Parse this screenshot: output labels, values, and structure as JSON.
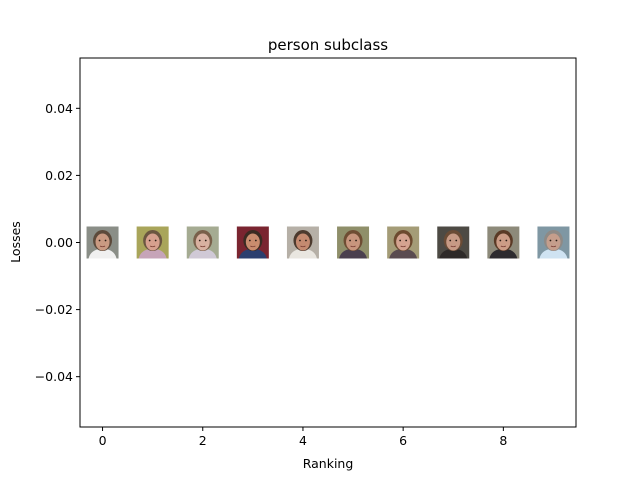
{
  "chart_data": {
    "type": "scatter",
    "title": "person subclass",
    "xlabel": "Ranking",
    "ylabel": "Losses",
    "xlim": [
      -0.45,
      9.45
    ],
    "ylim": [
      -0.055,
      0.055
    ],
    "xticks": [
      0,
      2,
      4,
      6,
      8
    ],
    "xtick_labels": [
      "0",
      "2",
      "4",
      "6",
      "8"
    ],
    "yticks": [
      -0.04,
      -0.02,
      0.0,
      0.02,
      0.04
    ],
    "ytick_labels": [
      "−0.04",
      "−0.02",
      "0.00",
      "0.02",
      "0.04"
    ],
    "grid": false,
    "markers": "face thumbnail images",
    "points": [
      {
        "x": 0,
        "y": 0.0,
        "palette": {
          "bg": "#8a8e87",
          "skin": "#c99a82",
          "hair": "#5c4a3b",
          "shirt": "#f0f0f0"
        }
      },
      {
        "x": 1,
        "y": 0.0,
        "palette": {
          "bg": "#a9a55a",
          "skin": "#d6a08e",
          "hair": "#6b5640",
          "shirt": "#c6a4b8"
        }
      },
      {
        "x": 2,
        "y": 0.0,
        "palette": {
          "bg": "#a5ab92",
          "skin": "#d8b1a0",
          "hair": "#79604a",
          "shirt": "#d0c9d6"
        }
      },
      {
        "x": 3,
        "y": 0.0,
        "palette": {
          "bg": "#7a2530",
          "skin": "#c98c6e",
          "hair": "#3b2b22",
          "shirt": "#2b3f6f"
        }
      },
      {
        "x": 4,
        "y": 0.0,
        "palette": {
          "bg": "#b6b0a7",
          "skin": "#c48a70",
          "hair": "#4c3a2e",
          "shirt": "#e9e6e0"
        }
      },
      {
        "x": 5,
        "y": 0.0,
        "palette": {
          "bg": "#8f8f6a",
          "skin": "#c7957d",
          "hair": "#6e4d33",
          "shirt": "#4a3f4e"
        }
      },
      {
        "x": 6,
        "y": 0.0,
        "palette": {
          "bg": "#a49c77",
          "skin": "#d4a390",
          "hair": "#6c4a2f",
          "shirt": "#5a4b50"
        }
      },
      {
        "x": 7,
        "y": 0.0,
        "palette": {
          "bg": "#4d4a44",
          "skin": "#c79a85",
          "hair": "#6a4b35",
          "shirt": "#2e2a29"
        }
      },
      {
        "x": 8,
        "y": 0.0,
        "palette": {
          "bg": "#8d8a7a",
          "skin": "#cc9c86",
          "hair": "#5a3a26",
          "shirt": "#2d2b2f"
        }
      },
      {
        "x": 9,
        "y": 0.0,
        "palette": {
          "bg": "#7f97a3",
          "skin": "#c59e8c",
          "hair": "#8e8a86",
          "shirt": "#cfe3f2"
        }
      }
    ]
  }
}
